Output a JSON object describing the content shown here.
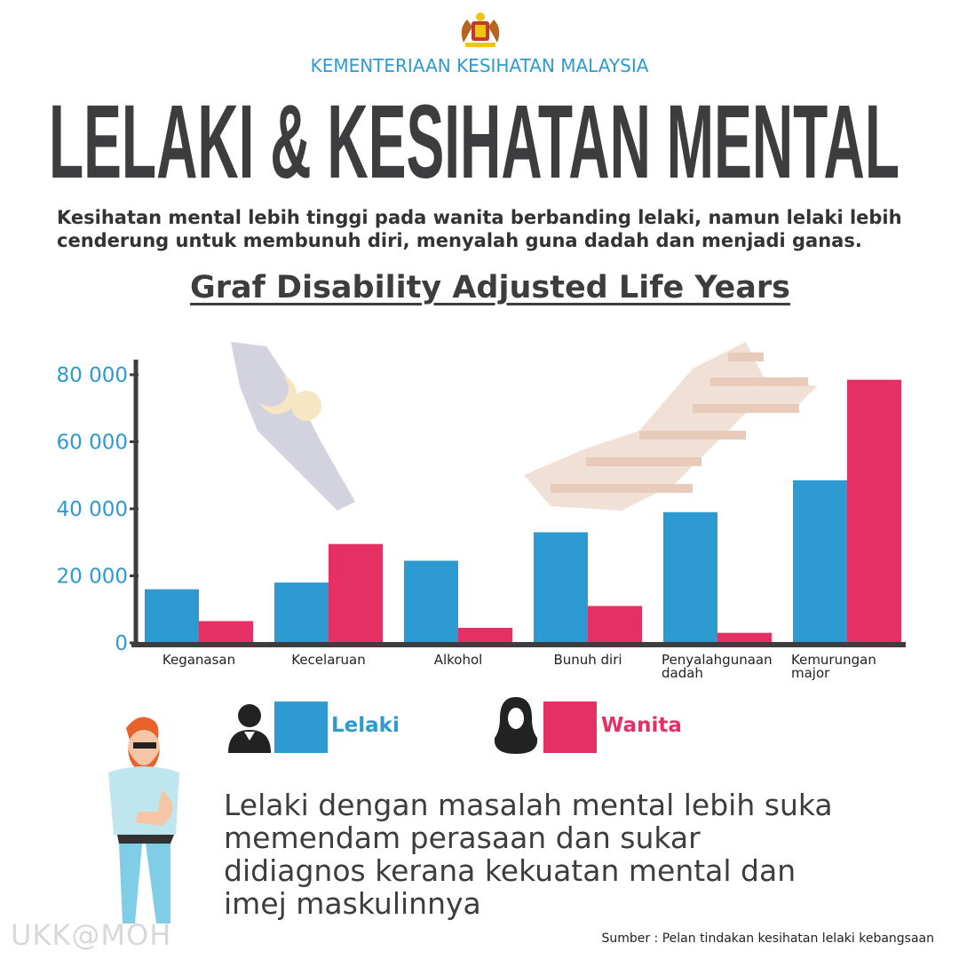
{
  "header": {
    "ministry": "KEMENTERIAAN KESIHATAN MALAYSIA",
    "title": "LELAKI & KESIHATAN MENTAL",
    "intro": "Kesihatan mental lebih tinggi pada wanita berbanding lelaki, namun lelaki lebih cenderung untuk membunuh diri, menyalah guna dadah dan menjadi ganas."
  },
  "chart_data": {
    "type": "bar",
    "title": "Graf Disability Adjusted Life Years",
    "xlabel": "",
    "ylabel": "",
    "ylim": [
      0,
      80000
    ],
    "yticks": [
      0,
      20000,
      40000,
      60000,
      80000
    ],
    "ytick_labels": [
      "0",
      "20 000",
      "40 000",
      "60 000",
      "80 000"
    ],
    "categories": [
      "Keganasan",
      "Kecelaruan",
      "Alkohol",
      "Bunuh diri",
      "Penyalahgunaan dadah",
      "Kemurungan major"
    ],
    "category_lines": [
      [
        "Keganasan"
      ],
      [
        "Kecelaruan"
      ],
      [
        "Alkohol"
      ],
      [
        "Bunuh diri"
      ],
      [
        "Penyalahgunaan",
        "dadah"
      ],
      [
        "Kemurungan",
        "major"
      ]
    ],
    "series": [
      {
        "name": "Lelaki",
        "color": "#2e9ad2",
        "values": [
          16000,
          18000,
          24500,
          33000,
          39000,
          48500
        ]
      },
      {
        "name": "Wanita",
        "color": "#e53066",
        "values": [
          6500,
          29500,
          4500,
          11000,
          3000,
          78500
        ]
      }
    ],
    "grid": false,
    "legend": "bottom"
  },
  "legend": {
    "male": "Lelaki",
    "female": "Wanita"
  },
  "message": "Lelaki dengan masalah mental lebih suka memendam perasaan dan sukar didiagnos kerana kekuatan mental dan imej maskulinnya",
  "source": "Sumber : Pelan tindakan kesihatan lelaki kebangsaan",
  "watermark": "UKK@MOH"
}
